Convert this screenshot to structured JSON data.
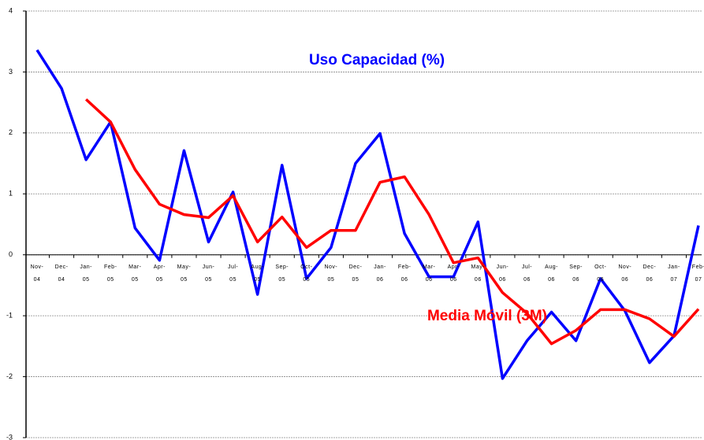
{
  "chart_data": {
    "type": "line",
    "categories": [
      "Nov-\n04",
      "Dec-\n04",
      "Jan-\n05",
      "Feb-\n05",
      "Mar-\n05",
      "Apr-\n05",
      "May-\n05",
      "Jun-\n05",
      "Jul-\n05",
      "Aug-\n05",
      "Sep-\n05",
      "Oct-\n05",
      "Nov-\n05",
      "Dec-\n05",
      "Jan-\n06",
      "Feb-\n06",
      "Mar-\n06",
      "Apr-\n06",
      "May-\n06",
      "Jun-\n06",
      "Jul-\n06",
      "Aug-\n06",
      "Sep-\n06",
      "Oct-\n06",
      "Nov-\n06",
      "Dec-\n06",
      "Jan-\n07",
      "Feb-\n07"
    ],
    "series": [
      {
        "name": "Uso Capacidad (%)",
        "color": "#0000ff",
        "values": [
          3.36,
          2.73,
          1.56,
          2.18,
          0.44,
          -0.09,
          1.71,
          0.21,
          1.03,
          -0.65,
          1.47,
          -0.39,
          0.12,
          1.5,
          1.99,
          0.35,
          -0.36,
          -0.36,
          0.54,
          -2.03,
          -1.41,
          -0.94,
          -1.41,
          -0.39,
          -0.92,
          -1.77,
          -1.33,
          0.48
        ]
      },
      {
        "name": "Media Móvil (3M)",
        "color": "#ff0000",
        "values": [
          null,
          null,
          2.55,
          2.18,
          1.4,
          0.83,
          0.66,
          0.61,
          0.97,
          0.21,
          0.62,
          0.12,
          0.4,
          0.4,
          1.19,
          1.28,
          0.66,
          -0.13,
          -0.05,
          -0.62,
          -0.96,
          -1.46,
          -1.24,
          -0.9,
          -0.9,
          -1.05,
          -1.34,
          -0.89
        ]
      }
    ],
    "ylim": [
      -3,
      4
    ],
    "yticks": [
      -3,
      -2,
      -1,
      0,
      1,
      2,
      3,
      4
    ],
    "grid": true
  }
}
